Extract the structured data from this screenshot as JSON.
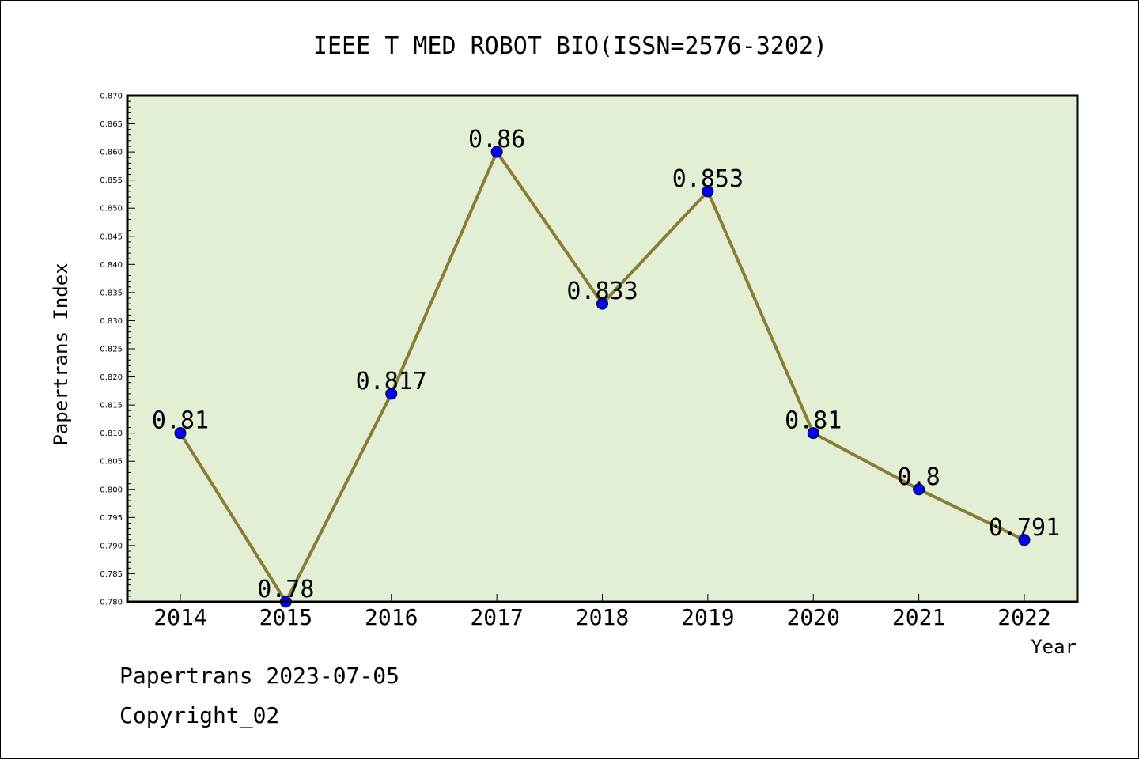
{
  "chart_data": {
    "type": "line",
    "title": "IEEE T MED ROBOT BIO(ISSN=2576-3202)",
    "xlabel": "Year",
    "ylabel": "Papertrans Index",
    "categories": [
      "2014",
      "2015",
      "2016",
      "2017",
      "2018",
      "2019",
      "2020",
      "2021",
      "2022"
    ],
    "series": [
      {
        "values": [
          0.81,
          0.78,
          0.817,
          0.86,
          0.833,
          0.853,
          0.81,
          0.8,
          0.791
        ],
        "labels": [
          "0.81",
          "0.78",
          "0.817",
          "0.86",
          "0.833",
          "0.853",
          "0.81",
          "0.8",
          "0.791"
        ]
      }
    ],
    "ylim": [
      0.78,
      0.87
    ],
    "yticks": [
      "0.780",
      "0.785",
      "0.790",
      "0.795",
      "0.800",
      "0.805",
      "0.810",
      "0.815",
      "0.820",
      "0.825",
      "0.830",
      "0.835",
      "0.840",
      "0.845",
      "0.850",
      "0.855",
      "0.860",
      "0.865",
      "0.870"
    ],
    "grid": false,
    "legend": "none"
  },
  "footer": {
    "line1": "Papertrans 2023-07-05",
    "line2": "Copyright_02"
  },
  "colors": {
    "plot_background": "#e2efd5",
    "line": "#8b7d35",
    "marker": "#0000ff",
    "axis": "#000000"
  }
}
